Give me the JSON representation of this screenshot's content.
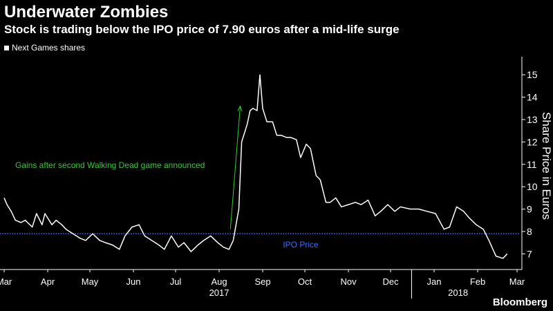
{
  "title": "Underwater Zombies",
  "subtitle": "Stock is trading below the IPO price of 7.90 euros after a mid-life surge",
  "brand": "Bloomberg",
  "colors": {
    "background": "#000000",
    "line": "#ffffff",
    "ipo_line": "#3b6cff",
    "annotation": "#33cc33"
  },
  "chart_data": {
    "type": "line",
    "series": [
      {
        "name": "Next Games shares",
        "x": [
          "2017-03-15",
          "2017-03-17",
          "2017-03-20",
          "2017-03-23",
          "2017-03-27",
          "2017-03-30",
          "2017-04-04",
          "2017-04-07",
          "2017-04-11",
          "2017-04-13",
          "2017-04-18",
          "2017-04-21",
          "2017-04-25",
          "2017-04-28",
          "2017-05-03",
          "2017-05-08",
          "2017-05-12",
          "2017-05-17",
          "2017-05-22",
          "2017-05-26",
          "2017-05-31",
          "2017-06-05",
          "2017-06-09",
          "2017-06-14",
          "2017-06-19",
          "2017-06-23",
          "2017-06-28",
          "2017-07-03",
          "2017-07-07",
          "2017-07-12",
          "2017-07-17",
          "2017-07-21",
          "2017-07-26",
          "2017-07-31",
          "2017-08-04",
          "2017-08-09",
          "2017-08-14",
          "2017-08-18",
          "2017-08-22",
          "2017-08-25",
          "2017-08-29",
          "2017-08-31",
          "2017-09-04",
          "2017-09-06",
          "2017-09-08",
          "2017-09-11",
          "2017-09-13",
          "2017-09-15",
          "2017-09-18",
          "2017-09-20",
          "2017-09-22",
          "2017-09-25",
          "2017-09-28",
          "2017-10-02",
          "2017-10-05",
          "2017-10-09",
          "2017-10-12",
          "2017-10-16",
          "2017-10-19",
          "2017-10-23",
          "2017-10-26",
          "2017-10-30",
          "2017-11-02",
          "2017-11-06",
          "2017-11-10",
          "2017-11-15",
          "2017-11-20",
          "2017-11-24",
          "2017-11-29",
          "2017-12-04",
          "2017-12-08",
          "2017-12-13",
          "2017-12-18",
          "2017-12-22",
          "2017-12-29",
          "2018-01-04",
          "2018-01-10",
          "2018-01-16",
          "2018-01-22",
          "2018-01-26",
          "2018-01-31",
          "2018-02-05",
          "2018-02-09",
          "2018-02-14",
          "2018-02-19",
          "2018-02-23",
          "2018-02-28",
          "2018-03-05",
          "2018-03-08"
        ],
        "values": [
          9.5,
          9.2,
          8.9,
          8.5,
          8.4,
          8.5,
          8.2,
          8.8,
          8.3,
          8.8,
          8.3,
          8.5,
          8.3,
          8.1,
          7.9,
          7.7,
          7.6,
          7.9,
          7.6,
          7.5,
          7.4,
          7.2,
          7.8,
          8.2,
          8.3,
          7.8,
          7.6,
          7.4,
          7.2,
          7.8,
          7.3,
          7.5,
          7.1,
          7.4,
          7.6,
          7.8,
          7.5,
          7.3,
          7.2,
          7.6,
          9.0,
          12.0,
          12.8,
          13.4,
          13.5,
          13.4,
          15.0,
          13.5,
          12.9,
          12.9,
          12.9,
          12.3,
          12.3,
          12.2,
          12.2,
          12.1,
          11.3,
          11.9,
          11.7,
          10.5,
          10.3,
          9.3,
          9.3,
          9.5,
          9.1,
          9.2,
          9.3,
          9.2,
          9.4,
          8.7,
          8.9,
          9.2,
          8.9,
          9.1,
          9.0,
          9.0,
          8.9,
          8.8,
          8.1,
          8.2,
          9.1,
          8.9,
          8.6,
          8.3,
          8.1,
          7.6,
          6.9,
          6.8,
          7.0
        ]
      }
    ],
    "reference_line": {
      "value": 7.9,
      "label": "IPO Price"
    },
    "annotation": {
      "text": "Gains after second Walking Dead game announced",
      "from": [
        "2017-08-23",
        8.1
      ],
      "to": [
        "2017-08-30",
        13.6
      ]
    },
    "x_tick_labels": [
      "Mar",
      "Apr",
      "May",
      "Jun",
      "Jul",
      "Aug",
      "Sep",
      "Oct",
      "Nov",
      "Dec",
      "Jan",
      "Feb",
      "Mar"
    ],
    "x_tick_dates": [
      "2017-03-15",
      "2017-04-15",
      "2017-05-15",
      "2017-06-15",
      "2017-07-15",
      "2017-08-15",
      "2017-09-15",
      "2017-10-15",
      "2017-11-15",
      "2017-12-15",
      "2018-01-15",
      "2018-02-15",
      "2018-03-15"
    ],
    "x_year_labels": [
      "2017",
      "2018"
    ],
    "x_year_dates": [
      "2017-08-15",
      "2018-02-01"
    ],
    "xlim": [
      "2017-03-14",
      "2018-03-16"
    ],
    "ylabel": "Share Price in Euros",
    "y_ticks": [
      7,
      8,
      9,
      10,
      11,
      12,
      13,
      14,
      15
    ],
    "ylim": [
      6.3,
      15.5
    ],
    "y_axis_side": "right",
    "grid": false,
    "legend_position": "top-left"
  }
}
